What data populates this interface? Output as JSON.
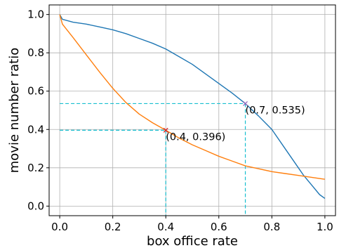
{
  "chart_data": {
    "type": "line",
    "title": "",
    "xlabel": "box office rate",
    "ylabel": "movie number ratio",
    "xlim": [
      -0.04,
      1.04
    ],
    "ylim": [
      -0.05,
      1.05
    ],
    "xticks": [
      0.0,
      0.2,
      0.4,
      0.6,
      0.8,
      1.0
    ],
    "xtick_labels": [
      "0.0",
      "0.2",
      "0.4",
      "0.6",
      "0.8",
      "1.0"
    ],
    "yticks": [
      0.0,
      0.2,
      0.4,
      0.6,
      0.8,
      1.0
    ],
    "ytick_labels": [
      "0.0",
      "0.2",
      "0.4",
      "0.6",
      "0.8",
      "1.0"
    ],
    "grid": true,
    "series": [
      {
        "color": "#1f77b4",
        "x": [
          0.0,
          0.01,
          0.05,
          0.1,
          0.15,
          0.2,
          0.25,
          0.3,
          0.35,
          0.4,
          0.45,
          0.5,
          0.55,
          0.6,
          0.65,
          0.7,
          0.75,
          0.8,
          0.85,
          0.9,
          0.92,
          0.95,
          0.98,
          1.0
        ],
        "y": [
          1.0,
          0.975,
          0.96,
          0.95,
          0.935,
          0.92,
          0.9,
          0.875,
          0.85,
          0.82,
          0.78,
          0.74,
          0.69,
          0.64,
          0.59,
          0.535,
          0.47,
          0.4,
          0.3,
          0.2,
          0.16,
          0.11,
          0.06,
          0.04
        ]
      },
      {
        "color": "#ff7f0e",
        "x": [
          0.0,
          0.01,
          0.05,
          0.1,
          0.15,
          0.2,
          0.25,
          0.3,
          0.35,
          0.4,
          0.45,
          0.5,
          0.55,
          0.6,
          0.65,
          0.7,
          0.75,
          0.8,
          0.85,
          0.9,
          0.95,
          1.0
        ],
        "y": [
          1.0,
          0.95,
          0.88,
          0.79,
          0.7,
          0.615,
          0.54,
          0.48,
          0.435,
          0.396,
          0.355,
          0.32,
          0.29,
          0.26,
          0.235,
          0.21,
          0.195,
          0.18,
          0.17,
          0.16,
          0.15,
          0.14
        ]
      }
    ],
    "annotations": [
      {
        "x": 0.4,
        "y": 0.396,
        "label": "(0.4, 0.396)",
        "marker_color": "#d62728"
      },
      {
        "x": 0.7,
        "y": 0.535,
        "label": "(0.7, 0.535)",
        "marker_color": "#9467bd"
      }
    ],
    "guide_color": "#17becf"
  }
}
